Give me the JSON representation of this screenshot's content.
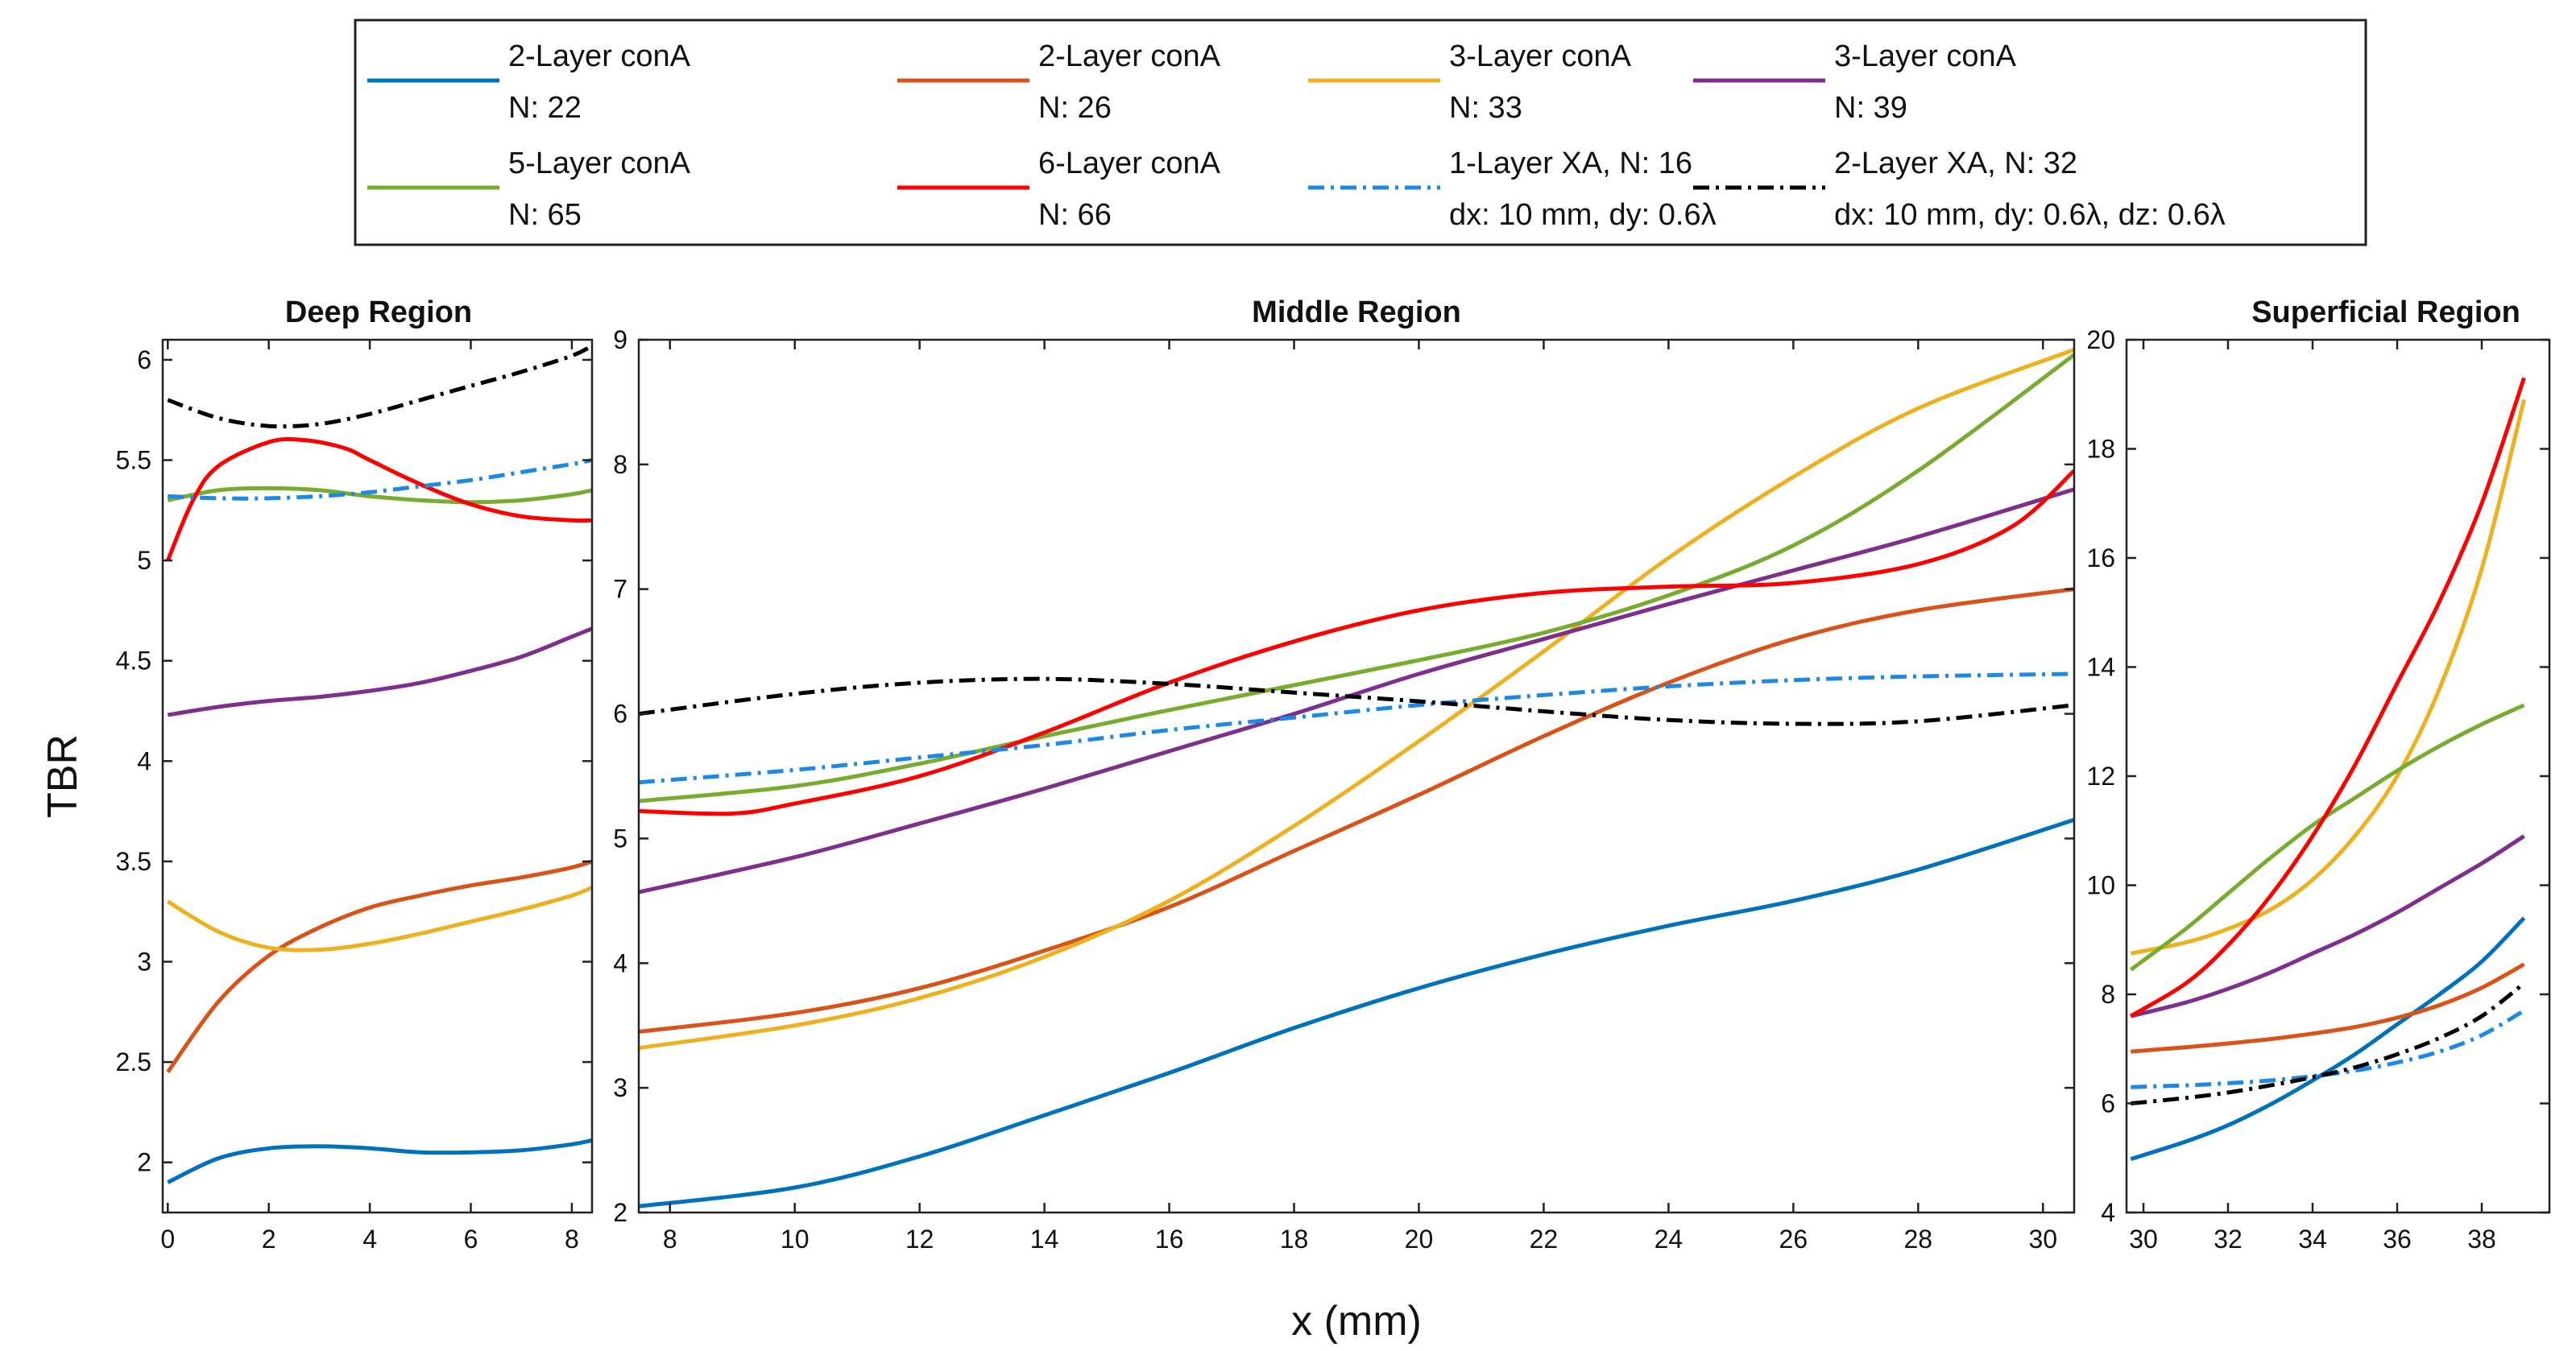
{
  "chart_data": {
    "type": "line",
    "ylabel": "TBR",
    "xlabel": "x (mm)",
    "legend": {
      "placement": "top-center",
      "entries": [
        {
          "key": "c1",
          "lines": [
            "2-Layer conA",
            "N: 22"
          ]
        },
        {
          "key": "c2",
          "lines": [
            "2-Layer conA",
            "N: 26"
          ]
        },
        {
          "key": "c3",
          "lines": [
            "3-Layer conA",
            "N: 33"
          ]
        },
        {
          "key": "c4",
          "lines": [
            "3-Layer conA",
            "N: 39"
          ]
        },
        {
          "key": "c5",
          "lines": [
            "5-Layer conA",
            "N: 65"
          ]
        },
        {
          "key": "c6",
          "lines": [
            "6-Layer conA",
            "N: 66"
          ]
        },
        {
          "key": "x1",
          "lines": [
            "1-Layer XA, N: 16",
            "dx: 10 mm, dy: 0.6λ"
          ]
        },
        {
          "key": "x2",
          "lines": [
            "2-Layer XA, N: 32",
            "dx: 10 mm, dy: 0.6λ, dz: 0.6λ"
          ]
        }
      ]
    },
    "series_styles": {
      "c1": {
        "color": "#0072BD",
        "dash": "solid"
      },
      "c2": {
        "color": "#D95319",
        "dash": "solid"
      },
      "c3": {
        "color": "#EDB120",
        "dash": "solid"
      },
      "c4": {
        "color": "#7E2F8E",
        "dash": "solid"
      },
      "c5": {
        "color": "#77AC30",
        "dash": "solid"
      },
      "c6": {
        "color": "#FF0000",
        "dash": "solid"
      },
      "x1": {
        "color": "#1E88E5",
        "dash": "dashdot"
      },
      "x2": {
        "color": "#000000",
        "dash": "dashdot"
      }
    },
    "panels": [
      {
        "title": "Deep Region",
        "xlim": [
          -0.1,
          8.4
        ],
        "ylim": [
          1.75,
          6.1
        ],
        "xticks": [
          0,
          2,
          4,
          6,
          8
        ],
        "yticks": [
          2,
          2.5,
          3,
          3.5,
          4,
          4.5,
          5,
          5.5,
          6
        ],
        "show_ylabel": true,
        "series": {
          "c1": {
            "x": [
              0,
              1,
              2,
              3,
              4,
              5,
              6,
              7,
              8,
              8.4
            ],
            "y": [
              1.9,
              2.02,
              2.07,
              2.08,
              2.07,
              2.05,
              2.05,
              2.06,
              2.09,
              2.11
            ]
          },
          "c2": {
            "x": [
              0,
              1,
              2,
              3,
              4,
              5,
              6,
              7,
              8,
              8.4
            ],
            "y": [
              2.45,
              2.8,
              3.03,
              3.17,
              3.27,
              3.33,
              3.38,
              3.42,
              3.47,
              3.5
            ]
          },
          "c3": {
            "x": [
              0,
              1,
              2,
              3,
              4,
              5,
              6,
              7,
              8,
              8.4
            ],
            "y": [
              3.3,
              3.15,
              3.07,
              3.06,
              3.09,
              3.14,
              3.2,
              3.26,
              3.33,
              3.37
            ]
          },
          "c4": {
            "x": [
              0,
              1,
              2,
              3,
              4,
              5,
              6,
              7,
              8,
              8.4
            ],
            "y": [
              4.23,
              4.27,
              4.3,
              4.32,
              4.35,
              4.39,
              4.45,
              4.52,
              4.62,
              4.66
            ]
          },
          "c5": {
            "x": [
              0,
              1,
              2,
              3,
              4,
              5,
              6,
              7,
              8,
              8.4
            ],
            "y": [
              5.3,
              5.35,
              5.36,
              5.35,
              5.32,
              5.3,
              5.29,
              5.3,
              5.33,
              5.35
            ]
          },
          "c6": {
            "x": [
              0,
              0.5,
              1,
              2,
              2.7,
              3.5,
              4,
              5,
              6,
              7,
              8,
              8.4
            ],
            "y": [
              5.0,
              5.3,
              5.47,
              5.59,
              5.6,
              5.56,
              5.5,
              5.38,
              5.28,
              5.22,
              5.2,
              5.2
            ]
          },
          "x1": {
            "x": [
              0,
              1,
              2,
              3,
              4,
              5,
              6,
              7,
              8,
              8.4
            ],
            "y": [
              5.32,
              5.31,
              5.31,
              5.32,
              5.34,
              5.37,
              5.4,
              5.44,
              5.48,
              5.5
            ]
          },
          "x2": {
            "x": [
              0,
              1,
              2,
              3,
              4,
              5,
              6,
              7,
              8,
              8.4
            ],
            "y": [
              5.8,
              5.71,
              5.67,
              5.68,
              5.73,
              5.8,
              5.87,
              5.94,
              6.02,
              6.07
            ]
          }
        }
      },
      {
        "title": "Middle Region",
        "xlim": [
          7.5,
          30.5
        ],
        "ylim": [
          2,
          9
        ],
        "xticks": [
          8,
          10,
          12,
          14,
          16,
          18,
          20,
          22,
          24,
          26,
          28,
          30
        ],
        "yticks": [
          2,
          3,
          4,
          5,
          6,
          7,
          8,
          9
        ],
        "show_ylabel": false,
        "series": {
          "c1": {
            "x": [
              7.5,
              10,
              12,
              14,
              16,
              18,
              20,
              22,
              24,
              26,
              28,
              30.5
            ],
            "y": [
              2.05,
              2.2,
              2.45,
              2.78,
              3.12,
              3.48,
              3.8,
              4.07,
              4.3,
              4.5,
              4.75,
              5.15
            ]
          },
          "c2": {
            "x": [
              7.5,
              10,
              12,
              14,
              16,
              18,
              20,
              22,
              24,
              26,
              28,
              30.5
            ],
            "y": [
              3.45,
              3.6,
              3.8,
              4.1,
              4.45,
              4.9,
              5.35,
              5.82,
              6.25,
              6.6,
              6.83,
              7.0
            ]
          },
          "c3": {
            "x": [
              7.5,
              10,
              12,
              14,
              16,
              18,
              20,
              22,
              24,
              26,
              28,
              30.5
            ],
            "y": [
              3.32,
              3.5,
              3.72,
              4.05,
              4.5,
              5.1,
              5.78,
              6.5,
              7.25,
              7.9,
              8.45,
              8.92
            ]
          },
          "c4": {
            "x": [
              7.5,
              10,
              12,
              14,
              16,
              18,
              20,
              22,
              24,
              26,
              28,
              30.5
            ],
            "y": [
              4.57,
              4.85,
              5.12,
              5.4,
              5.7,
              6.0,
              6.32,
              6.6,
              6.88,
              7.15,
              7.42,
              7.8
            ]
          },
          "c5": {
            "x": [
              7.5,
              10,
              12,
              14,
              16,
              18,
              20,
              22,
              24,
              26,
              28,
              30.5
            ],
            "y": [
              5.3,
              5.42,
              5.6,
              5.82,
              6.03,
              6.23,
              6.43,
              6.65,
              6.95,
              7.35,
              7.95,
              8.88
            ]
          },
          "c6": {
            "x": [
              7.5,
              9,
              10,
              12,
              14,
              16,
              18,
              20,
              22,
              24,
              26,
              28,
              29.5,
              30.5
            ],
            "y": [
              5.22,
              5.2,
              5.28,
              5.5,
              5.85,
              6.25,
              6.58,
              6.83,
              6.97,
              7.02,
              7.05,
              7.2,
              7.5,
              7.95
            ]
          },
          "x1": {
            "x": [
              7.5,
              10,
              12,
              14,
              16,
              18,
              20,
              22,
              24,
              26,
              28,
              30.5
            ],
            "y": [
              5.45,
              5.55,
              5.65,
              5.75,
              5.87,
              5.97,
              6.07,
              6.15,
              6.22,
              6.27,
              6.3,
              6.32
            ]
          },
          "x2": {
            "x": [
              7.5,
              10,
              12,
              14,
              16,
              18,
              20,
              22,
              24,
              26,
              28,
              30.5
            ],
            "y": [
              6.0,
              6.16,
              6.25,
              6.28,
              6.24,
              6.17,
              6.1,
              6.02,
              5.95,
              5.92,
              5.94,
              6.07
            ]
          }
        }
      },
      {
        "title": "Superficial Region",
        "xlim": [
          29.6,
          39.6
        ],
        "ylim": [
          4,
          20
        ],
        "xticks": [
          30,
          32,
          34,
          36,
          38
        ],
        "yticks": [
          4,
          6,
          8,
          10,
          12,
          14,
          16,
          18,
          20
        ],
        "show_ylabel": false,
        "series": {
          "c1": {
            "x": [
              29.7,
              31,
              32,
              33,
              34,
              35,
              36,
              37,
              38,
              39
            ],
            "y": [
              4.98,
              5.3,
              5.6,
              5.98,
              6.42,
              6.9,
              7.45,
              8.0,
              8.6,
              9.4
            ]
          },
          "c2": {
            "x": [
              29.7,
              31,
              32,
              33,
              34,
              35,
              36,
              37,
              38,
              39
            ],
            "y": [
              6.95,
              7.03,
              7.1,
              7.18,
              7.28,
              7.4,
              7.57,
              7.8,
              8.12,
              8.55
            ]
          },
          "c3": {
            "x": [
              29.7,
              31,
              32,
              33,
              34,
              35,
              36,
              37,
              38,
              39
            ],
            "y": [
              8.75,
              8.95,
              9.2,
              9.55,
              10.1,
              10.9,
              12.0,
              13.6,
              15.8,
              18.9
            ]
          },
          "c4": {
            "x": [
              29.7,
              31,
              32,
              33,
              34,
              35,
              36,
              37,
              38,
              39
            ],
            "y": [
              7.6,
              7.85,
              8.1,
              8.4,
              8.75,
              9.1,
              9.5,
              9.95,
              10.4,
              10.9
            ]
          },
          "c5": {
            "x": [
              29.7,
              31,
              32,
              33,
              34,
              35,
              36,
              37,
              38,
              39
            ],
            "y": [
              8.45,
              9.2,
              9.85,
              10.5,
              11.1,
              11.6,
              12.1,
              12.55,
              12.95,
              13.3
            ]
          },
          "c6": {
            "x": [
              29.7,
              31,
              32,
              33,
              34,
              35,
              36,
              37,
              38,
              39
            ],
            "y": [
              7.6,
              8.2,
              8.9,
              9.8,
              10.9,
              12.2,
              13.7,
              15.2,
              17.0,
              19.3
            ]
          },
          "x1": {
            "x": [
              29.7,
              31,
              32,
              33,
              34,
              35,
              36,
              37,
              38,
              39
            ],
            "y": [
              6.3,
              6.33,
              6.37,
              6.42,
              6.5,
              6.6,
              6.75,
              6.95,
              7.25,
              7.7
            ]
          },
          "x2": {
            "x": [
              29.7,
              31,
              32,
              33,
              34,
              35,
              36,
              37,
              38,
              39
            ],
            "y": [
              6.0,
              6.1,
              6.2,
              6.33,
              6.48,
              6.66,
              6.9,
              7.2,
              7.6,
              8.2
            ]
          }
        }
      }
    ]
  }
}
